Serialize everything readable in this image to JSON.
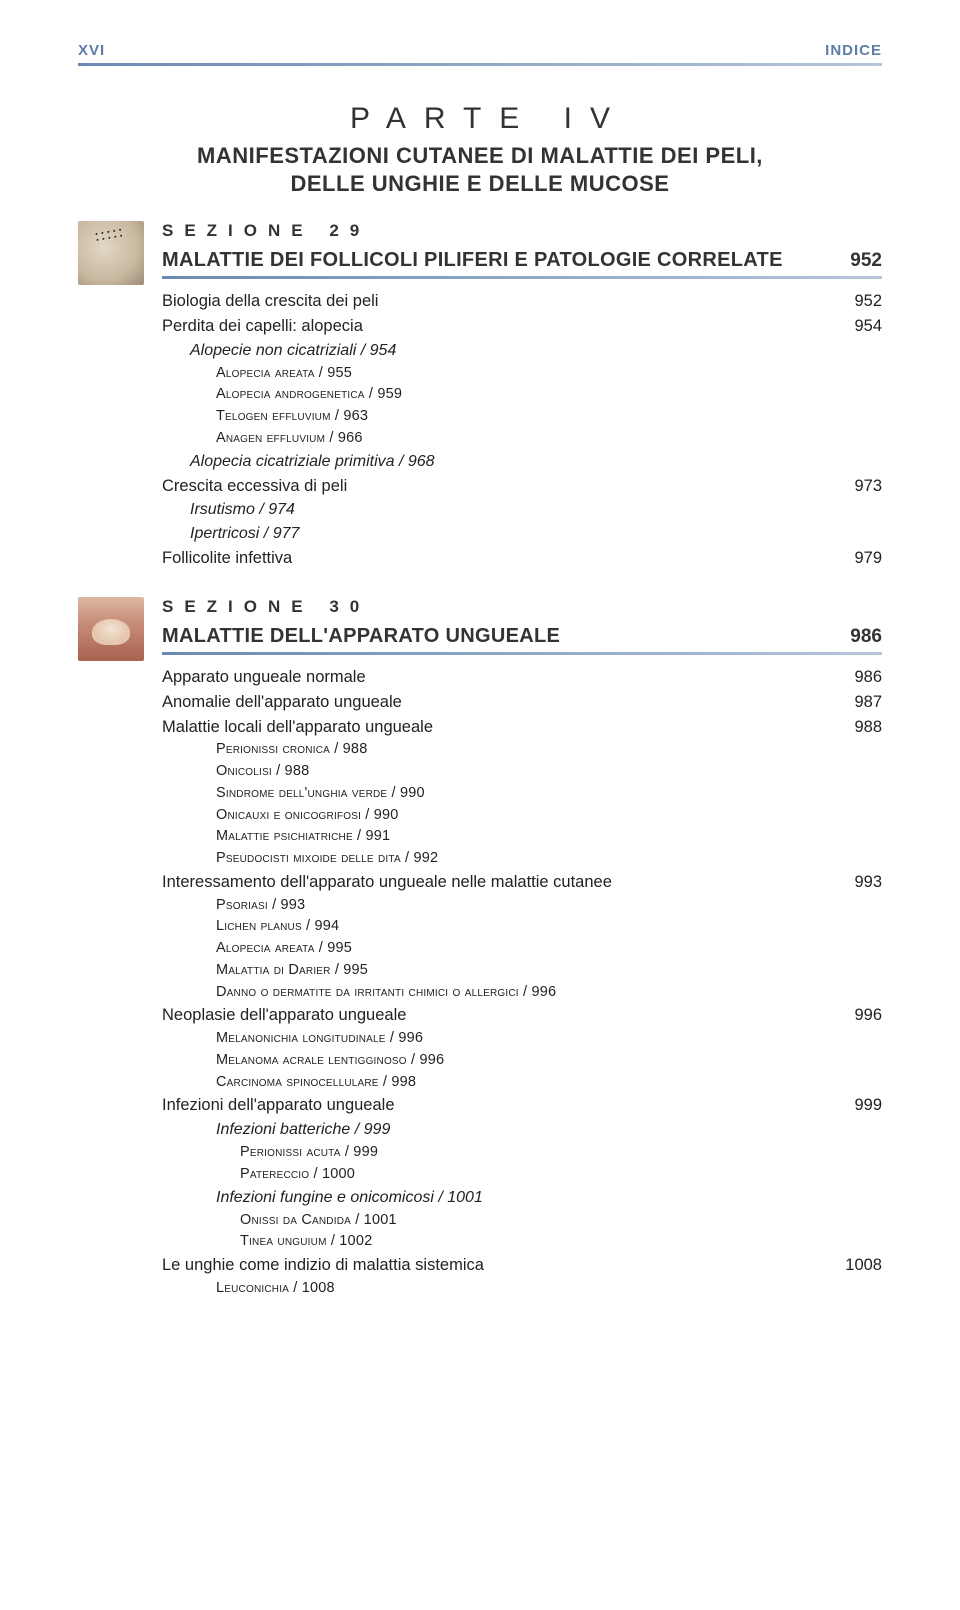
{
  "runningHead": {
    "left": "XVI",
    "right": "INDICE"
  },
  "part": {
    "label": "PARTE IV",
    "title_l1": "MANIFESTAZIONI CUTANEE DI MALATTIE DEI PELI,",
    "title_l2": "DELLE UNGHIE E DELLE MUCOSE"
  },
  "sec29": {
    "label": "SEZIONE 29",
    "title": "MALATTIE DEI FOLLICOLI PILIFERI E PATOLOGIE CORRELATE",
    "page": "952",
    "entries": [
      {
        "lvl": 1,
        "text": "Biologia della crescita dei peli",
        "page": "952"
      },
      {
        "lvl": 1,
        "text": "Perdita dei capelli: alopecia",
        "page": "954"
      },
      {
        "lvl": 2,
        "text": "Alopecie non cicatriziali / 954"
      },
      {
        "lvl": 3,
        "text": "Alopecia areata / 955"
      },
      {
        "lvl": 3,
        "text": "Alopecia androgenetica / 959"
      },
      {
        "lvl": 3,
        "text": "Telogen effluvium / 963"
      },
      {
        "lvl": 3,
        "text": "Anagen effluvium / 966"
      },
      {
        "lvl": 2,
        "text": "Alopecia cicatriziale primitiva / 968"
      },
      {
        "lvl": 1,
        "text": "Crescita eccessiva di peli",
        "page": "973"
      },
      {
        "lvl": 2,
        "text": "Irsutismo / 974"
      },
      {
        "lvl": 2,
        "text": "Ipertricosi / 977"
      },
      {
        "lvl": 1,
        "text": "Follicolite infettiva",
        "page": "979"
      }
    ]
  },
  "sec30": {
    "label": "SEZIONE 30",
    "title": "MALATTIE DELL'APPARATO UNGUEALE",
    "page": "986",
    "entries": [
      {
        "lvl": 1,
        "text": "Apparato ungueale normale",
        "page": "986"
      },
      {
        "lvl": 1,
        "text": "Anomalie dell'apparato ungueale",
        "page": "987"
      },
      {
        "lvl": 1,
        "text": "Malattie locali dell'apparato ungueale",
        "page": "988"
      },
      {
        "lvl": 3,
        "text": "Perionissi cronica / 988"
      },
      {
        "lvl": 3,
        "text": "Onicolisi / 988"
      },
      {
        "lvl": 3,
        "text": "Sindrome dell'unghia verde / 990"
      },
      {
        "lvl": 3,
        "text": "Onicauxi e onicogrifosi / 990"
      },
      {
        "lvl": 3,
        "text": "Malattie psichiatriche / 991"
      },
      {
        "lvl": 3,
        "text": "Pseudocisti mixoide delle dita / 992"
      },
      {
        "lvl": 1,
        "text": "Interessamento dell'apparato ungueale nelle malattie cutanee",
        "page": "993"
      },
      {
        "lvl": 3,
        "text": "Psoriasi / 993"
      },
      {
        "lvl": 3,
        "text": "Lichen planus / 994"
      },
      {
        "lvl": 3,
        "text": "Alopecia areata / 995"
      },
      {
        "lvl": 3,
        "text": "Malattia di Darier / 995"
      },
      {
        "lvl": 3,
        "text": "Danno o dermatite da irritanti chimici o allergici / 996"
      },
      {
        "lvl": 1,
        "text": "Neoplasie dell'apparato ungueale",
        "page": "996"
      },
      {
        "lvl": 3,
        "text": "Melanonichia longitudinale / 996"
      },
      {
        "lvl": 3,
        "text": "Melanoma acrale lentigginoso / 996"
      },
      {
        "lvl": 3,
        "text": "Carcinoma spinocellulare / 998"
      },
      {
        "lvl": 1,
        "text": "Infezioni dell'apparato ungueale",
        "page": "999"
      },
      {
        "lvl": "2b",
        "text": "Infezioni batteriche / 999"
      },
      {
        "lvl": 3,
        "text": "Perionissi acuta / 999",
        "indent": 78
      },
      {
        "lvl": 3,
        "text": "Patereccio / 1000",
        "indent": 78
      },
      {
        "lvl": "2b",
        "text": "Infezioni fungine e onicomicosi / 1001"
      },
      {
        "lvl": 3,
        "text": "Onissi da Candida / 1001",
        "indent": 78
      },
      {
        "lvl": 3,
        "text": "Tinea unguium / 1002",
        "indent": 78
      },
      {
        "lvl": 1,
        "text": "Le unghie come indizio di malattia sistemica",
        "page": "1008"
      },
      {
        "lvl": 3,
        "text": "Leuconichia / 1008"
      }
    ]
  }
}
